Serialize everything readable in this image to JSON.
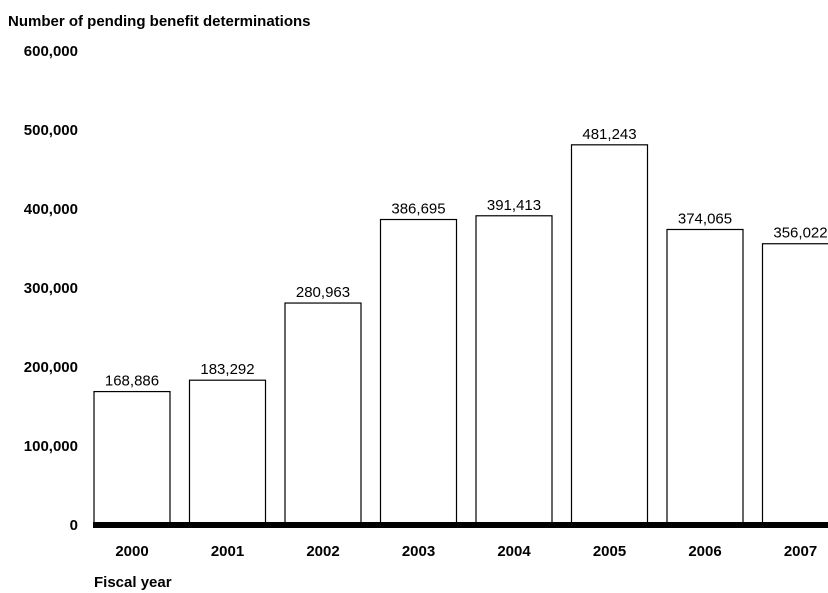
{
  "chart_data": {
    "type": "bar",
    "title": "",
    "ylabel": "Number of pending benefit determinations",
    "xlabel": "Fiscal year",
    "categories": [
      "2000",
      "2001",
      "2002",
      "2003",
      "2004",
      "2005",
      "2006",
      "2007"
    ],
    "values": [
      168886,
      183292,
      280963,
      386695,
      391413,
      481243,
      374065,
      356022
    ],
    "data_labels": [
      "168,886",
      "183,292",
      "280,963",
      "386,695",
      "391,413",
      "481,243",
      "374,065",
      "356,022"
    ],
    "y_ticks": [
      "0",
      "100,000",
      "200,000",
      "300,000",
      "400,000",
      "500,000",
      "600,000"
    ],
    "y_tick_values": [
      0,
      100000,
      200000,
      300000,
      400000,
      500000,
      600000
    ],
    "ylim": [
      0,
      600000
    ],
    "grid": false,
    "legend": "none",
    "colors": {
      "bar_fill": "#ffffff",
      "bar_stroke": "#000000",
      "baseline": "#000000"
    }
  }
}
